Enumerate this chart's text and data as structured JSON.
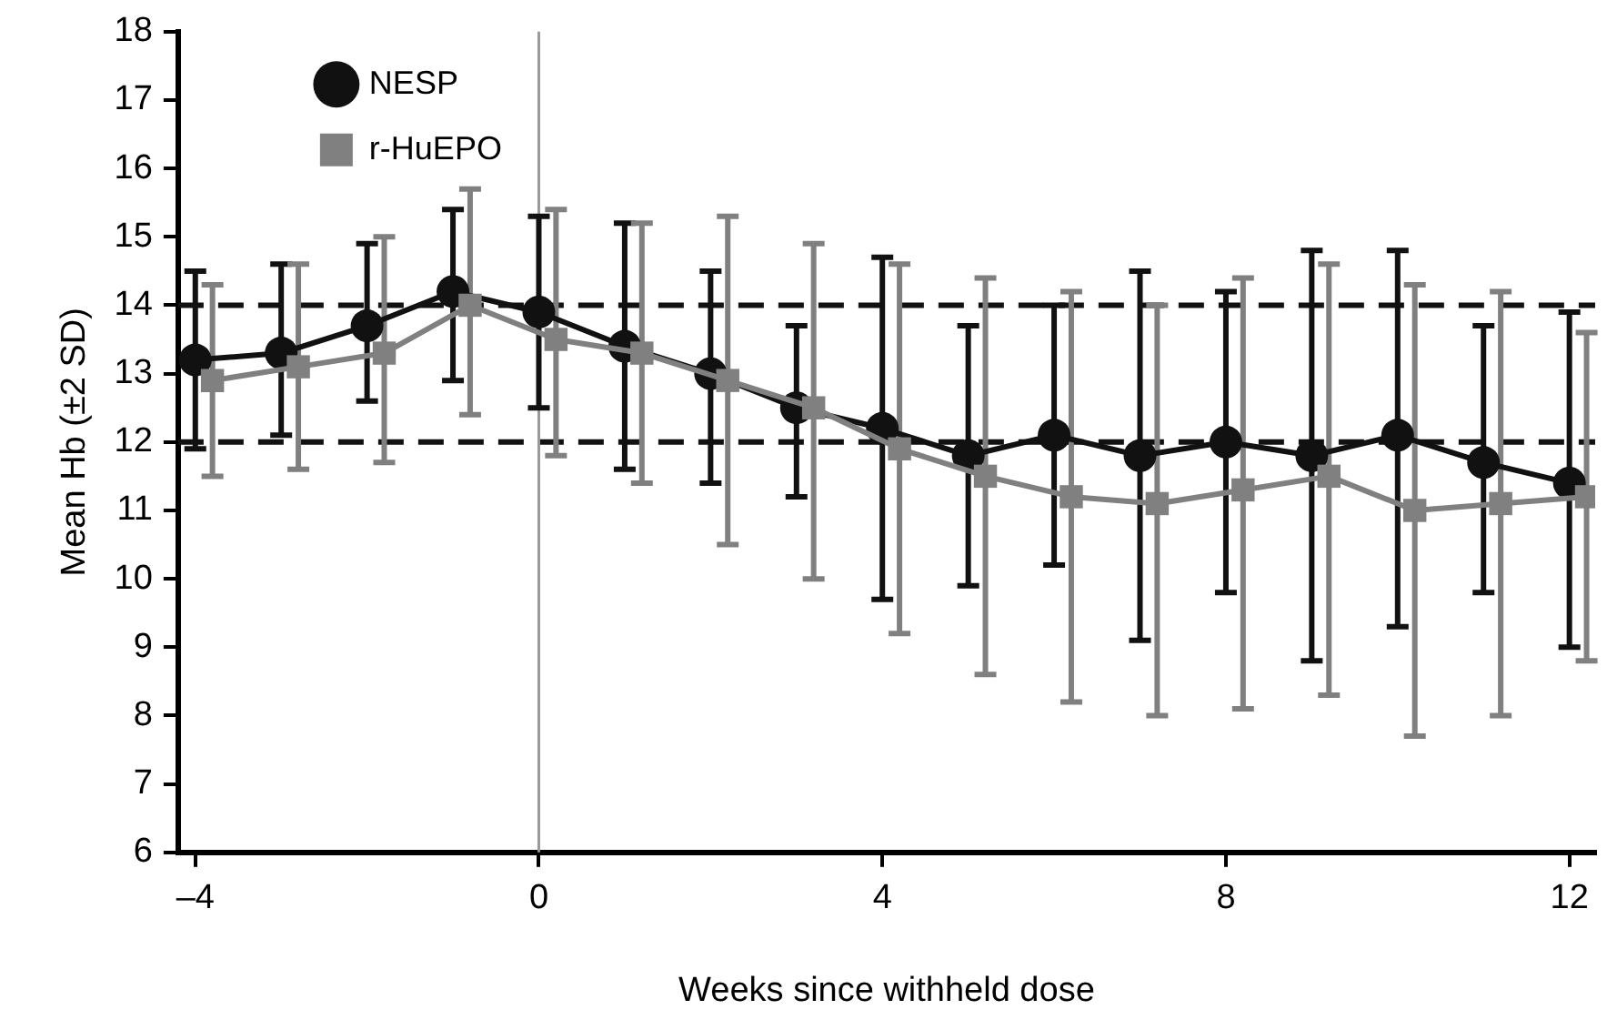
{
  "chart_data": {
    "type": "line",
    "xlabel": "Weeks since withheld dose",
    "ylabel": "Mean Hb (±2 SD)",
    "xlim": [
      -4.2,
      12.3
    ],
    "xticks": [
      {
        "value": -4,
        "label": "–4"
      },
      0,
      4,
      8,
      12
    ],
    "ylim": [
      6,
      18
    ],
    "yticks": [
      6,
      7,
      8,
      9,
      10,
      11,
      12,
      13,
      14,
      15,
      16,
      17,
      18
    ],
    "grid": false,
    "legend": "top left",
    "line_style": "solid",
    "ref_lines": [
      {
        "axis": "y",
        "value": 12,
        "color": "#111111",
        "line_style": "dashed"
      },
      {
        "axis": "y",
        "value": 14,
        "color": "#111111",
        "line_style": "dashed"
      },
      {
        "axis": "x",
        "value": 0,
        "color": "#999999",
        "line_style": "solid"
      }
    ],
    "series": [
      {
        "name": "NESP",
        "color": "#111111",
        "marker": "circle",
        "x": [
          -4,
          -3,
          -2,
          -1,
          0,
          1,
          2,
          3,
          4,
          5,
          6,
          7,
          8,
          9,
          10,
          11,
          12
        ],
        "values": [
          13.2,
          13.3,
          13.7,
          14.2,
          13.9,
          13.4,
          13.0,
          12.5,
          12.2,
          11.8,
          12.1,
          11.8,
          12.0,
          11.8,
          12.1,
          11.7,
          11.4
        ],
        "errors": [
          [
            11.9,
            14.5
          ],
          [
            12.1,
            14.6
          ],
          [
            12.6,
            14.9
          ],
          [
            12.9,
            15.4
          ],
          [
            12.5,
            15.3
          ],
          [
            11.6,
            15.2
          ],
          [
            11.4,
            14.5
          ],
          [
            11.2,
            13.7
          ],
          [
            9.7,
            14.7
          ],
          [
            9.9,
            13.7
          ],
          [
            10.2,
            14.0
          ],
          [
            9.1,
            14.5
          ],
          [
            9.8,
            14.2
          ],
          [
            8.8,
            14.8
          ],
          [
            9.3,
            14.8
          ],
          [
            9.8,
            13.7
          ],
          [
            9.0,
            13.9
          ]
        ]
      },
      {
        "name": "r-HuEPO",
        "color": "#808080",
        "marker": "square",
        "x": [
          -3.8,
          -2.8,
          -1.8,
          -0.8,
          0.2,
          1.2,
          2.2,
          3.2,
          4.2,
          5.2,
          6.2,
          7.2,
          8.2,
          9.2,
          10.2,
          11.2,
          12.2
        ],
        "values": [
          12.9,
          13.1,
          13.3,
          14.0,
          13.5,
          13.3,
          12.9,
          12.5,
          11.9,
          11.5,
          11.2,
          11.1,
          11.3,
          11.5,
          11.0,
          11.1,
          11.2
        ],
        "errors": [
          [
            11.5,
            14.3
          ],
          [
            11.6,
            14.6
          ],
          [
            11.7,
            15.0
          ],
          [
            12.4,
            15.7
          ],
          [
            11.8,
            15.4
          ],
          [
            11.4,
            15.2
          ],
          [
            10.5,
            15.3
          ],
          [
            10.0,
            14.9
          ],
          [
            9.2,
            14.6
          ],
          [
            8.6,
            14.4
          ],
          [
            8.2,
            14.2
          ],
          [
            8.0,
            14.0
          ],
          [
            8.1,
            14.4
          ],
          [
            8.3,
            14.6
          ],
          [
            7.7,
            14.3
          ],
          [
            8.0,
            14.2
          ],
          [
            8.8,
            13.6
          ]
        ]
      }
    ]
  }
}
